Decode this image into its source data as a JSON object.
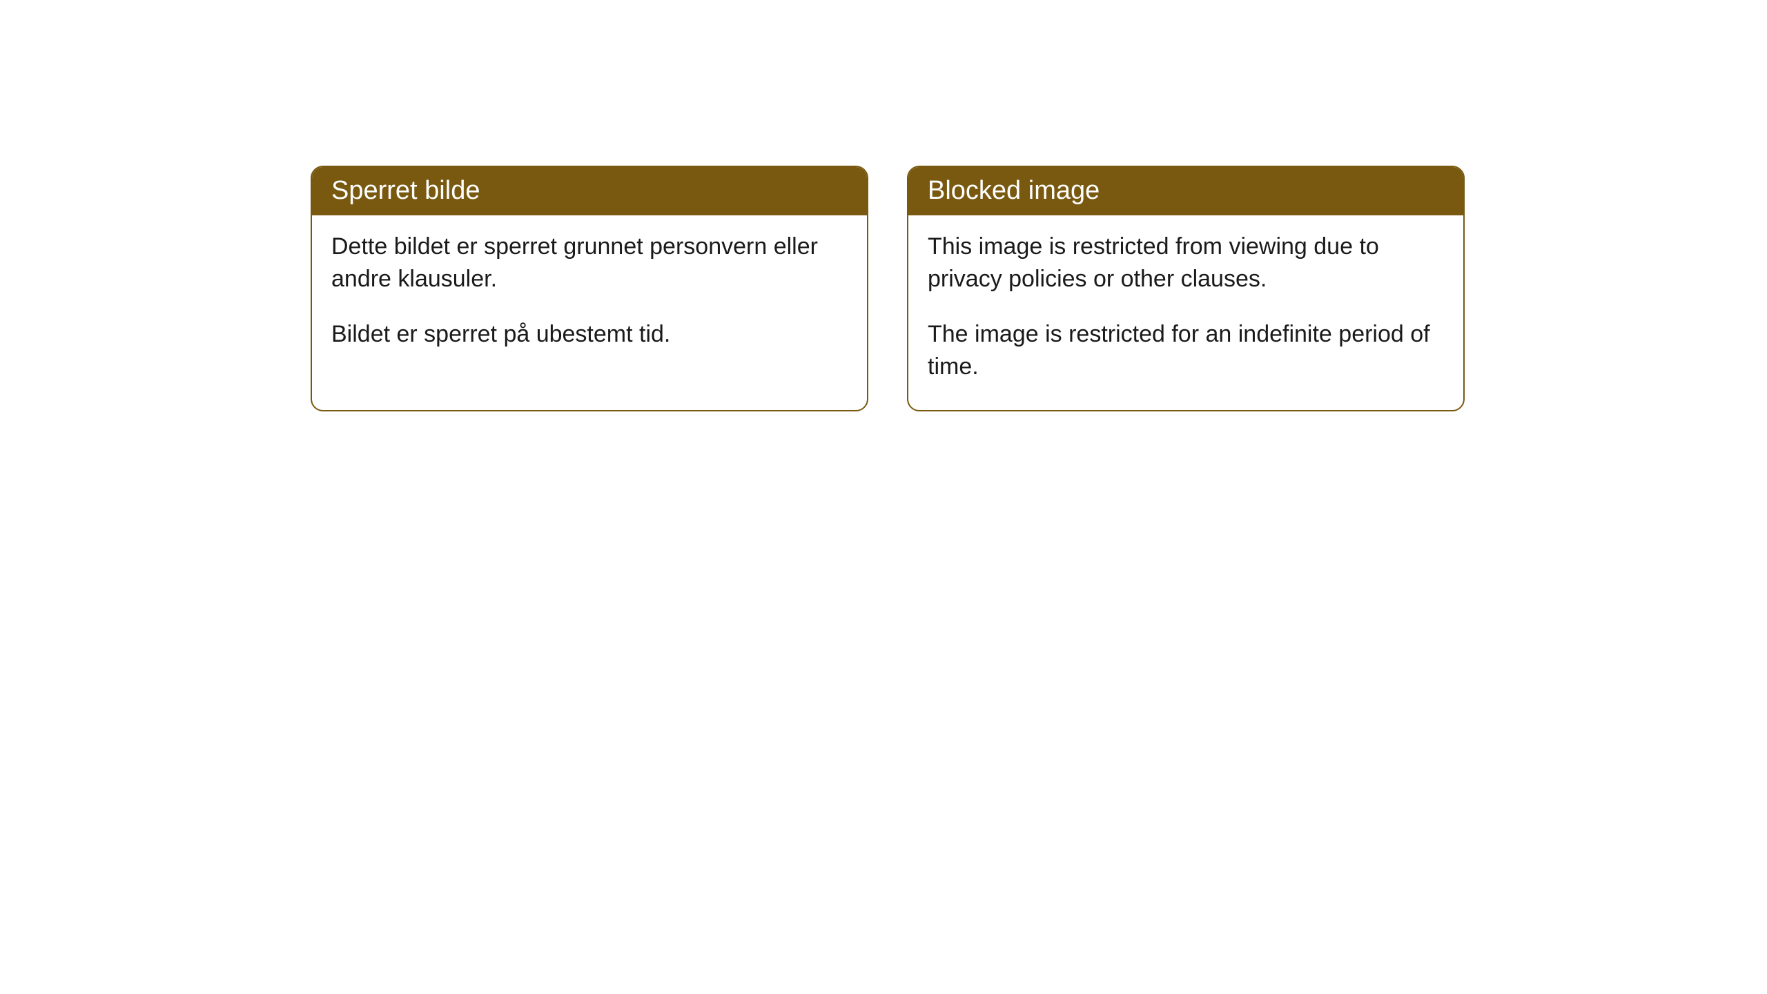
{
  "cards": [
    {
      "header": "Sperret bilde",
      "paragraph1": "Dette bildet er sperret grunnet personvern eller andre klausuler.",
      "paragraph2": "Bildet er sperret på ubestemt tid."
    },
    {
      "header": "Blocked image",
      "paragraph1": "This image is restricted from viewing due to privacy policies or other clauses.",
      "paragraph2": "The image is restricted for an indefinite period of time."
    }
  ],
  "styling": {
    "header_background": "#795910",
    "header_text_color": "#ffffff",
    "border_color": "#795910",
    "card_background": "#ffffff",
    "body_text_color": "#1a1a1a",
    "border_radius": 18,
    "header_font_size": 38,
    "body_font_size": 34
  }
}
